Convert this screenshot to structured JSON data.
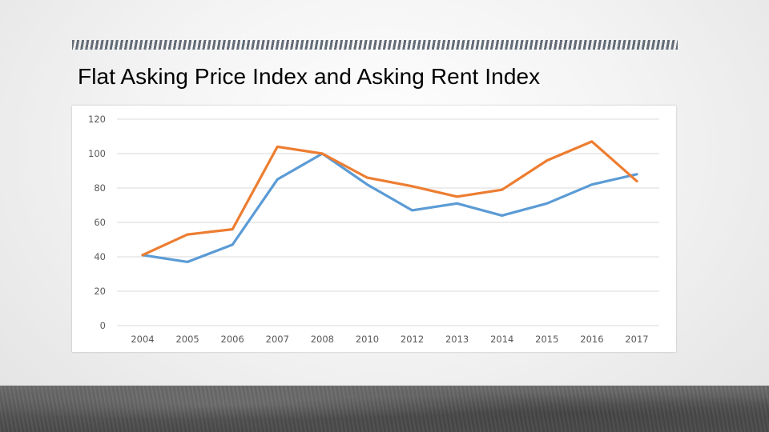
{
  "slide": {
    "title": "Flat Asking Price Index and Asking Rent Index"
  },
  "colors": {
    "series_blue": "#5b9bd5",
    "series_orange": "#ed7d31",
    "gridline": "#d9d9d9",
    "tick_text": "#595959"
  },
  "chart_data": {
    "type": "line",
    "title": "",
    "xlabel": "",
    "ylabel": "",
    "categories": [
      "2004",
      "2005",
      "2006",
      "2007",
      "2008",
      "2010",
      "2012",
      "2013",
      "2014",
      "2015",
      "2016",
      "2017"
    ],
    "yticks": [
      "0",
      "20",
      "40",
      "60",
      "80",
      "100",
      "120"
    ],
    "ylim": [
      0,
      120
    ],
    "grid": true,
    "legend": "none",
    "series": [
      {
        "color": "#5b9bd5",
        "values": [
          41,
          37,
          47,
          85,
          100,
          82,
          67,
          71,
          64,
          71,
          82,
          88
        ]
      },
      {
        "color": "#ed7d31",
        "values": [
          41,
          53,
          56,
          104,
          100,
          86,
          81,
          75,
          79,
          96,
          107,
          84
        ]
      }
    ]
  }
}
